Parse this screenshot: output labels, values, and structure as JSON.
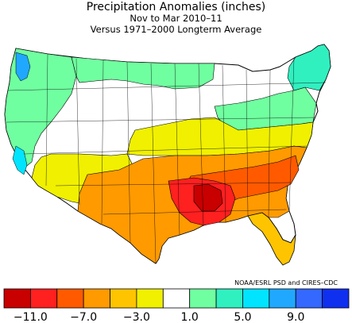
{
  "title": "Precipitation Anomalies (inches)",
  "subtitle": "Nov to Mar 2010–11",
  "subtitle2": "Versus 1971–2000 Longterm Average",
  "credit": "NOAA/ESRL PSD and CIRES–CDC",
  "legend": {
    "colors": [
      "#c80000",
      "#ff2020",
      "#ff5a00",
      "#ff9a00",
      "#ffc400",
      "#f0f000",
      "#ffffff",
      "#70ffa0",
      "#30f0c0",
      "#00e4ff",
      "#20a8ff",
      "#3468ff",
      "#1030f0"
    ],
    "bins": [
      -11,
      -9,
      -7,
      -5,
      -3,
      -1,
      1,
      3,
      5,
      7,
      9,
      11
    ],
    "labels": [
      "−11.0",
      "−7.0",
      "−3.0",
      "1.0",
      "5.0",
      "9.0"
    ]
  }
}
